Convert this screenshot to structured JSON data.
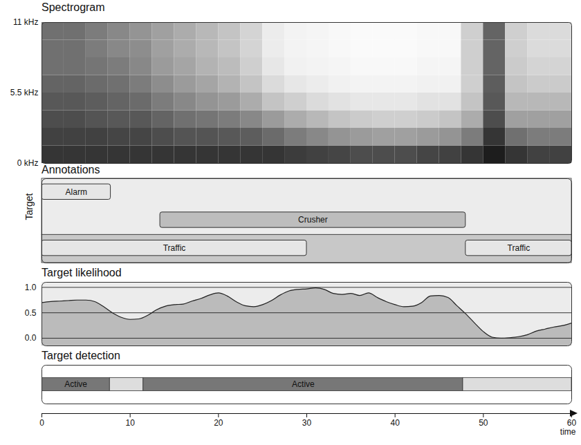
{
  "chart_data": [
    {
      "type": "spectrogram",
      "title": "Spectrogram",
      "x": [
        0,
        2.5,
        5,
        7.5,
        10,
        12.5,
        15,
        17.5,
        20,
        22.5,
        25,
        27.5,
        30,
        32.5,
        35,
        37.5,
        40,
        42.5,
        45,
        47.5,
        50,
        52.5,
        55,
        57.5
      ],
      "y": [
        0,
        1.375,
        2.75,
        4.125,
        5.5,
        6.875,
        8.25,
        9.625
      ],
      "values": [
        [
          0.85,
          0.85,
          0.85,
          0.85,
          0.85,
          0.85,
          0.85,
          0.85,
          0.85,
          0.85,
          0.85,
          0.82,
          0.8,
          0.78,
          0.75,
          0.75,
          0.75,
          0.78,
          0.8,
          0.85,
          0.95,
          0.85,
          0.8,
          0.8
        ],
        [
          0.8,
          0.8,
          0.8,
          0.78,
          0.78,
          0.75,
          0.72,
          0.72,
          0.7,
          0.68,
          0.62,
          0.55,
          0.5,
          0.45,
          0.42,
          0.4,
          0.4,
          0.42,
          0.45,
          0.55,
          0.85,
          0.6,
          0.55,
          0.55
        ],
        [
          0.75,
          0.75,
          0.72,
          0.7,
          0.7,
          0.65,
          0.6,
          0.58,
          0.55,
          0.5,
          0.42,
          0.35,
          0.3,
          0.25,
          0.22,
          0.2,
          0.2,
          0.22,
          0.25,
          0.35,
          0.75,
          0.4,
          0.4,
          0.4
        ],
        [
          0.7,
          0.7,
          0.68,
          0.65,
          0.62,
          0.55,
          0.5,
          0.45,
          0.42,
          0.35,
          0.25,
          0.2,
          0.15,
          0.12,
          0.1,
          0.1,
          0.1,
          0.12,
          0.12,
          0.25,
          0.7,
          0.3,
          0.3,
          0.3
        ],
        [
          0.65,
          0.65,
          0.62,
          0.6,
          0.55,
          0.48,
          0.42,
          0.38,
          0.32,
          0.25,
          0.15,
          0.1,
          0.08,
          0.06,
          0.05,
          0.05,
          0.05,
          0.06,
          0.06,
          0.2,
          0.68,
          0.25,
          0.22,
          0.22
        ],
        [
          0.6,
          0.6,
          0.58,
          0.55,
          0.5,
          0.42,
          0.38,
          0.32,
          0.28,
          0.2,
          0.1,
          0.06,
          0.05,
          0.04,
          0.03,
          0.03,
          0.03,
          0.04,
          0.04,
          0.2,
          0.65,
          0.22,
          0.18,
          0.18
        ],
        [
          0.6,
          0.6,
          0.55,
          0.5,
          0.48,
          0.4,
          0.35,
          0.3,
          0.25,
          0.18,
          0.08,
          0.05,
          0.04,
          0.03,
          0.02,
          0.02,
          0.02,
          0.03,
          0.03,
          0.2,
          0.65,
          0.2,
          0.15,
          0.15
        ],
        [
          0.6,
          0.6,
          0.55,
          0.5,
          0.45,
          0.4,
          0.35,
          0.3,
          0.25,
          0.18,
          0.08,
          0.05,
          0.04,
          0.03,
          0.02,
          0.02,
          0.02,
          0.03,
          0.03,
          0.2,
          0.65,
          0.2,
          0.15,
          0.15
        ]
      ],
      "xlim": [
        0,
        60
      ],
      "ylim": [
        0,
        11
      ],
      "yticks": [
        {
          "value": 0,
          "label": "0 kHz"
        },
        {
          "value": 5.5,
          "label": "5.5 kHz"
        },
        {
          "value": 11,
          "label": "11 kHz"
        }
      ],
      "color": "#111111"
    },
    {
      "type": "timeline",
      "title": "Annotations",
      "ylabel": "Target",
      "events": [
        {
          "label": "Alarm",
          "start": 0,
          "end": 7.8,
          "target": true
        },
        {
          "label": "Crusher",
          "start": 13.4,
          "end": 48,
          "target": true
        },
        {
          "label": "Traffic",
          "start": 0,
          "end": 30,
          "target": false
        },
        {
          "label": "Traffic",
          "start": 48,
          "end": 60,
          "target": false
        }
      ],
      "xlim": [
        0,
        60
      ]
    },
    {
      "type": "area",
      "title": "Target likelihood",
      "x": [
        0,
        1,
        2,
        3,
        4,
        5,
        6,
        7,
        8,
        9,
        10,
        11,
        12,
        13,
        14,
        15,
        16,
        17,
        18,
        19,
        20,
        21,
        22,
        23,
        24,
        25,
        26,
        27,
        28,
        29,
        30,
        31,
        32,
        33,
        34,
        35,
        36,
        37,
        38,
        39,
        40,
        41,
        42,
        43,
        44,
        45,
        46,
        47,
        48,
        49,
        50,
        51,
        52,
        53,
        54,
        55,
        56,
        57,
        58,
        59,
        60
      ],
      "values": [
        0.7,
        0.72,
        0.73,
        0.74,
        0.75,
        0.75,
        0.72,
        0.62,
        0.5,
        0.41,
        0.37,
        0.38,
        0.45,
        0.56,
        0.63,
        0.66,
        0.67,
        0.73,
        0.78,
        0.85,
        0.89,
        0.83,
        0.72,
        0.64,
        0.62,
        0.66,
        0.74,
        0.85,
        0.93,
        0.96,
        0.97,
        0.99,
        0.96,
        0.88,
        0.86,
        0.88,
        0.84,
        0.89,
        0.8,
        0.72,
        0.66,
        0.62,
        0.63,
        0.7,
        0.83,
        0.84,
        0.8,
        0.64,
        0.48,
        0.3,
        0.13,
        0.02,
        0.0,
        0.01,
        0.03,
        0.07,
        0.14,
        0.18,
        0.22,
        0.25,
        0.3
      ],
      "xlim": [
        0,
        60
      ],
      "ylim": [
        -0.15,
        1.1
      ],
      "yticks": [
        {
          "value": 0,
          "label": "0.0"
        },
        0.5,
        {
          "value": 1,
          "label": "1.0"
        }
      ],
      "grid": true,
      "color": "#bbbbbb"
    },
    {
      "type": "timeline",
      "title": "Target detection",
      "active_label": "Active",
      "segments": [
        {
          "start": 0,
          "end": 7.7,
          "active": true
        },
        {
          "start": 7.7,
          "end": 11.5,
          "active": false
        },
        {
          "start": 11.5,
          "end": 47.7,
          "active": true
        },
        {
          "start": 47.7,
          "end": 60,
          "active": false
        }
      ],
      "xlim": [
        0,
        60
      ]
    },
    {
      "type": "axis",
      "xlim": [
        0,
        60
      ],
      "xticks": [
        0,
        10,
        20,
        30,
        40,
        50,
        60
      ],
      "xlabel": "time"
    }
  ]
}
